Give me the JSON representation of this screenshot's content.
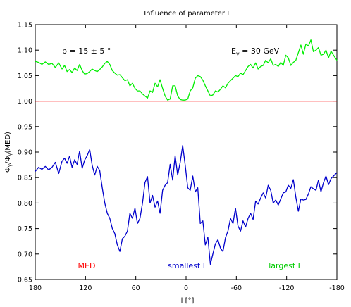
{
  "chart_data": {
    "type": "line",
    "title": "Influence of parameter L",
    "xlabel": "l [°]",
    "ylabel_parts": {
      "phi": "Φ",
      "sub": "γ",
      "slash": "/",
      "med": "(MED)"
    },
    "xlim": [
      180,
      -180
    ],
    "ylim": [
      0.65,
      1.15
    ],
    "xticks": [
      180,
      120,
      60,
      0,
      -60,
      -120,
      -180
    ],
    "yticks": [
      0.65,
      0.7,
      0.75,
      0.8,
      0.85,
      0.9,
      0.95,
      1.0,
      1.05,
      1.1,
      1.15
    ],
    "annotations": {
      "b_label": "b = 15 ± 5 °",
      "energy_prefix": "E",
      "energy_sub": "γ",
      "energy_suffix": " = 30 GeV"
    },
    "series": [
      {
        "name": "MED",
        "color": "#ff0000",
        "x": [
          180,
          -180
        ],
        "y": [
          1.0,
          1.0
        ]
      },
      {
        "name": "smallest L",
        "color": "#0000cc",
        "x": [
          180,
          176,
          172,
          168,
          164,
          160,
          156,
          152,
          148,
          145,
          142,
          139,
          136,
          133,
          130,
          127,
          124,
          121,
          118,
          115,
          112,
          109,
          106,
          103,
          100,
          97,
          94,
          91,
          88,
          85,
          82,
          79,
          76,
          73,
          70,
          67,
          64,
          61,
          58,
          55,
          52,
          49,
          46,
          43,
          40,
          37,
          34,
          31,
          28,
          25,
          22,
          19,
          16,
          13,
          10,
          7,
          4,
          1,
          -2,
          -5,
          -8,
          -11,
          -14,
          -17,
          -20,
          -23,
          -26,
          -29,
          -32,
          -35,
          -38,
          -41,
          -44,
          -47,
          -50,
          -53,
          -56,
          -59,
          -62,
          -65,
          -68,
          -71,
          -74,
          -77,
          -80,
          -83,
          -86,
          -89,
          -92,
          -95,
          -98,
          -101,
          -104,
          -107,
          -110,
          -113,
          -116,
          -119,
          -122,
          -125,
          -128,
          -131,
          -134,
          -137,
          -140,
          -143,
          -146,
          -149,
          -152,
          -155,
          -158,
          -161,
          -164,
          -167,
          -170,
          -173,
          -176,
          -180
        ],
        "y": [
          0.862,
          0.87,
          0.866,
          0.872,
          0.865,
          0.87,
          0.88,
          0.858,
          0.882,
          0.888,
          0.878,
          0.892,
          0.87,
          0.885,
          0.876,
          0.902,
          0.868,
          0.884,
          0.893,
          0.905,
          0.874,
          0.855,
          0.872,
          0.864,
          0.83,
          0.8,
          0.78,
          0.77,
          0.75,
          0.74,
          0.718,
          0.705,
          0.73,
          0.735,
          0.745,
          0.78,
          0.77,
          0.79,
          0.76,
          0.77,
          0.8,
          0.84,
          0.852,
          0.8,
          0.815,
          0.792,
          0.804,
          0.78,
          0.825,
          0.835,
          0.84,
          0.876,
          0.845,
          0.893,
          0.855,
          0.88,
          0.913,
          0.874,
          0.83,
          0.825,
          0.853,
          0.822,
          0.83,
          0.76,
          0.765,
          0.718,
          0.733,
          0.68,
          0.7,
          0.72,
          0.728,
          0.712,
          0.705,
          0.732,
          0.745,
          0.77,
          0.76,
          0.79,
          0.755,
          0.745,
          0.765,
          0.753,
          0.77,
          0.78,
          0.768,
          0.804,
          0.798,
          0.81,
          0.82,
          0.81,
          0.835,
          0.825,
          0.8,
          0.806,
          0.796,
          0.808,
          0.82,
          0.822,
          0.835,
          0.829,
          0.846,
          0.812,
          0.784,
          0.808,
          0.806,
          0.807,
          0.818,
          0.832,
          0.828,
          0.825,
          0.845,
          0.822,
          0.84,
          0.853,
          0.836,
          0.848,
          0.853,
          0.86
        ]
      },
      {
        "name": "largest L",
        "color": "#00ee00",
        "x": [
          180,
          176,
          172,
          168,
          164,
          160,
          156,
          152,
          148,
          145,
          142,
          139,
          136,
          133,
          130,
          127,
          124,
          121,
          118,
          115,
          112,
          109,
          106,
          103,
          100,
          97,
          94,
          91,
          88,
          85,
          82,
          79,
          76,
          73,
          70,
          67,
          64,
          61,
          58,
          55,
          52,
          49,
          46,
          43,
          40,
          37,
          34,
          31,
          28,
          25,
          22,
          19,
          16,
          13,
          10,
          7,
          4,
          1,
          -2,
          -5,
          -8,
          -11,
          -14,
          -17,
          -20,
          -23,
          -26,
          -29,
          -32,
          -35,
          -38,
          -41,
          -44,
          -47,
          -50,
          -53,
          -56,
          -59,
          -62,
          -65,
          -68,
          -71,
          -74,
          -77,
          -80,
          -83,
          -86,
          -89,
          -92,
          -95,
          -98,
          -101,
          -104,
          -107,
          -110,
          -113,
          -116,
          -119,
          -122,
          -125,
          -128,
          -131,
          -134,
          -137,
          -140,
          -143,
          -146,
          -149,
          -152,
          -155,
          -158,
          -161,
          -164,
          -167,
          -170,
          -173,
          -176,
          -180
        ],
        "y": [
          1.078,
          1.076,
          1.072,
          1.077,
          1.072,
          1.074,
          1.066,
          1.075,
          1.063,
          1.07,
          1.058,
          1.062,
          1.056,
          1.065,
          1.06,
          1.072,
          1.06,
          1.053,
          1.054,
          1.058,
          1.063,
          1.06,
          1.058,
          1.062,
          1.067,
          1.074,
          1.078,
          1.072,
          1.06,
          1.055,
          1.051,
          1.052,
          1.046,
          1.04,
          1.042,
          1.03,
          1.035,
          1.025,
          1.02,
          1.02,
          1.014,
          1.01,
          1.006,
          1.02,
          1.017,
          1.035,
          1.028,
          1.042,
          1.025,
          1.01,
          1.002,
          1.004,
          1.03,
          1.03,
          1.01,
          1.003,
          1.002,
          1.002,
          1.004,
          1.02,
          1.026,
          1.045,
          1.05,
          1.048,
          1.041,
          1.03,
          1.02,
          1.01,
          1.012,
          1.02,
          1.018,
          1.023,
          1.03,
          1.026,
          1.035,
          1.04,
          1.045,
          1.05,
          1.048,
          1.055,
          1.052,
          1.06,
          1.068,
          1.072,
          1.065,
          1.075,
          1.063,
          1.068,
          1.07,
          1.08,
          1.075,
          1.083,
          1.07,
          1.072,
          1.068,
          1.076,
          1.07,
          1.09,
          1.085,
          1.07,
          1.076,
          1.08,
          1.095,
          1.11,
          1.092,
          1.112,
          1.108,
          1.12,
          1.097,
          1.1,
          1.105,
          1.09,
          1.092,
          1.1,
          1.085,
          1.098,
          1.09,
          1.08
        ]
      }
    ]
  }
}
